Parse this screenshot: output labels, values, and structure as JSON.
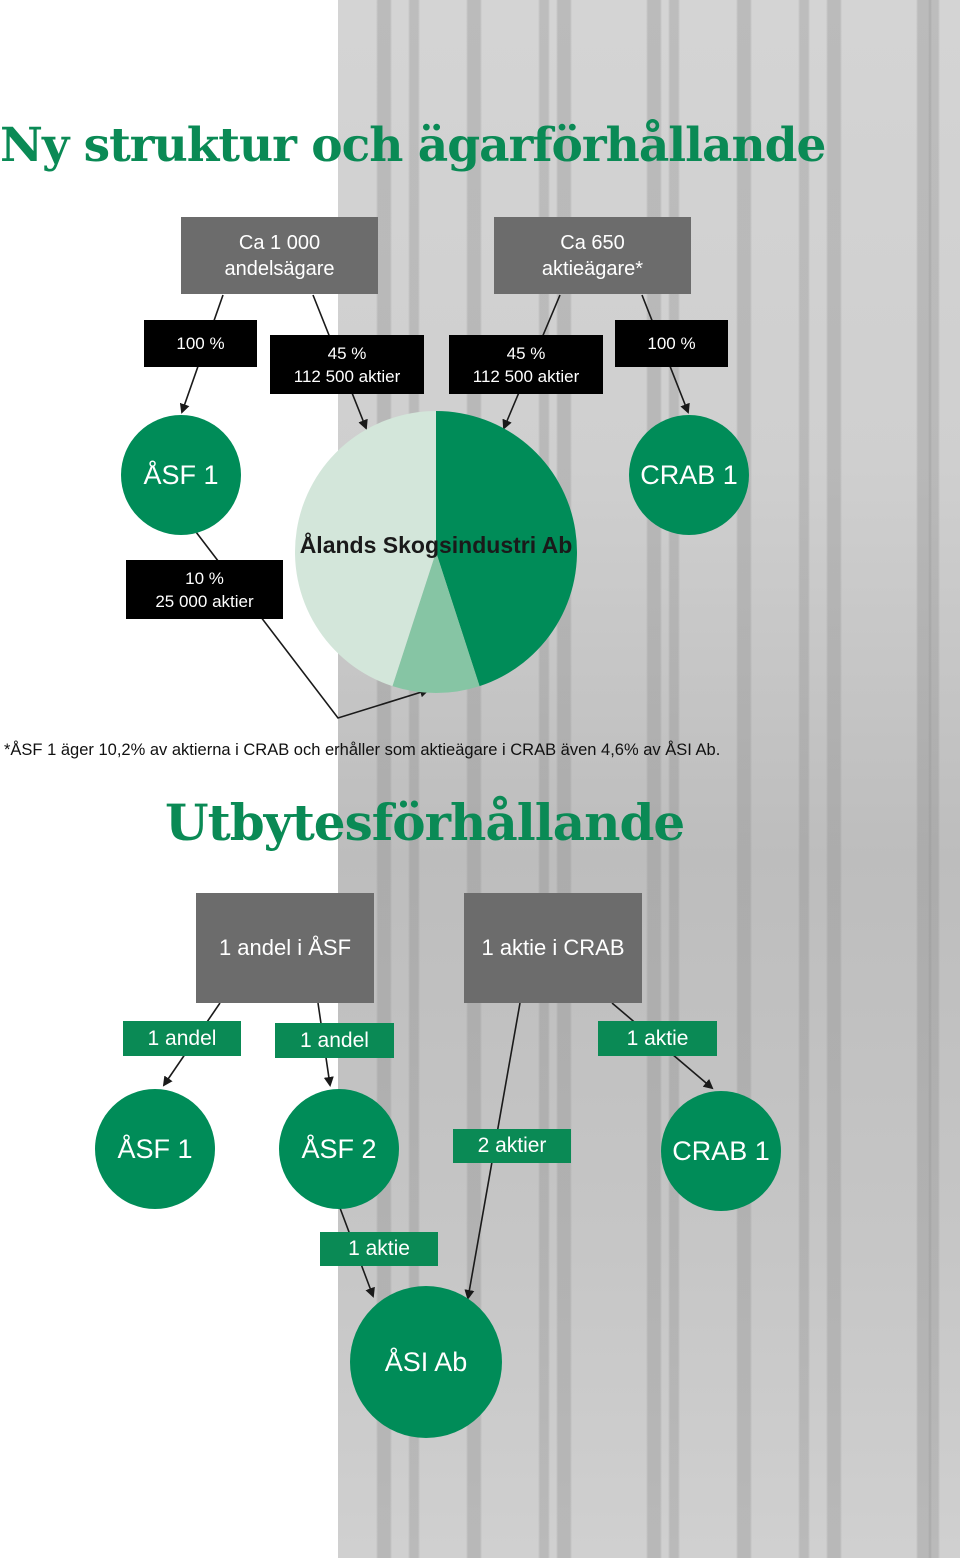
{
  "section1": {
    "title": "Ny struktur och ägarförhållande",
    "owners_left": {
      "line1": "Ca 1 000",
      "line2": "andelsägare"
    },
    "owners_right": {
      "line1": "Ca 650",
      "line2": "aktieägare*"
    },
    "pct_left": "100 %",
    "pct_right": "100 %",
    "stake_left": {
      "line1": "45 %",
      "line2": "112 500 aktier"
    },
    "stake_right": {
      "line1": "45 %",
      "line2": "112 500 aktier"
    },
    "stake_asf1": {
      "line1": "10 %",
      "line2": "25 000 aktier"
    },
    "circle_left": "ÅSF 1",
    "circle_right": "CRAB 1",
    "company": "Ålands Skogsindustri Ab",
    "footnote": "*ÅSF 1 äger 10,2% av aktierna i CRAB och erhåller som aktieägare i CRAB även 4,6% av ÅSI Ab."
  },
  "section2": {
    "title": "Utbytesförhållande",
    "box_left": "1 andel i ÅSF",
    "box_right": "1 aktie i CRAB",
    "label_andel_1": "1 andel",
    "label_andel_2": "1 andel",
    "label_aktie_crab": "1 aktie",
    "label_2_aktier": "2 aktier",
    "label_aktie_asf2": "1 aktie",
    "circle_asf1": "ÅSF 1",
    "circle_asf2": "ÅSF 2",
    "circle_crab1": "CRAB 1",
    "circle_asi": "ÅSI Ab"
  },
  "chart_data": {
    "type": "pie",
    "title": "Ålands Skogsindustri Ab",
    "categories": [
      "ÅSF 1",
      "ÅSF 1",
      "CRAB 1"
    ],
    "values": [
      45,
      10,
      45
    ],
    "colors": [
      "#d3e6da",
      "#86c5a4",
      "#008c58"
    ]
  },
  "colors": {
    "green": "#008c58",
    "title_green": "#0a8a55",
    "gray_box": "#6c6c6c",
    "black_box": "#000000"
  }
}
